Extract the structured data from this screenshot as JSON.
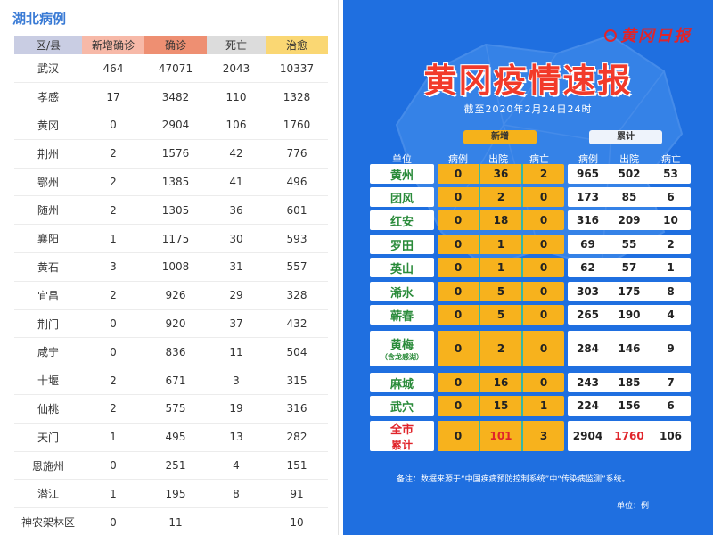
{
  "left_panel": {
    "title": "湖北病例",
    "headers": [
      "区/县",
      "新增确诊",
      "确诊",
      "死亡",
      "治愈"
    ],
    "header_colors": [
      "#c9cde3",
      "#f7b9a8",
      "#ee8f72",
      "#dcdcdc",
      "#fad773"
    ],
    "rows": [
      [
        "武汉",
        "464",
        "47071",
        "2043",
        "10337"
      ],
      [
        "孝感",
        "17",
        "3482",
        "110",
        "1328"
      ],
      [
        "黄冈",
        "0",
        "2904",
        "106",
        "1760"
      ],
      [
        "荆州",
        "2",
        "1576",
        "42",
        "776"
      ],
      [
        "鄂州",
        "2",
        "1385",
        "41",
        "496"
      ],
      [
        "随州",
        "2",
        "1305",
        "36",
        "601"
      ],
      [
        "襄阳",
        "1",
        "1175",
        "30",
        "593"
      ],
      [
        "黄石",
        "3",
        "1008",
        "31",
        "557"
      ],
      [
        "宜昌",
        "2",
        "926",
        "29",
        "328"
      ],
      [
        "荆门",
        "0",
        "920",
        "37",
        "432"
      ],
      [
        "咸宁",
        "0",
        "836",
        "11",
        "504"
      ],
      [
        "十堰",
        "2",
        "671",
        "3",
        "315"
      ],
      [
        "仙桃",
        "2",
        "575",
        "19",
        "316"
      ],
      [
        "天门",
        "1",
        "495",
        "13",
        "282"
      ],
      [
        "恩施州",
        "0",
        "251",
        "4",
        "151"
      ],
      [
        "潜江",
        "1",
        "195",
        "8",
        "91"
      ],
      [
        "神农架林区",
        "0",
        "11",
        "",
        "10"
      ]
    ]
  },
  "poster": {
    "brand": "黄冈日报",
    "headline": "黄冈疫情速报",
    "subhead": "截至2020年2月24日24时",
    "pill_new": "新增",
    "pill_total": "累计",
    "col_unit": "单位",
    "col_labels": [
      "病例",
      "出院",
      "病亡",
      "病例",
      "出院",
      "病亡"
    ],
    "rows": [
      {
        "name": "黄州",
        "sub": "",
        "new": [
          "0",
          "36",
          "2"
        ],
        "total": [
          "965",
          "502",
          "53"
        ]
      },
      {
        "name": "团风",
        "sub": "",
        "new": [
          "0",
          "2",
          "0"
        ],
        "total": [
          "173",
          "85",
          "6"
        ]
      },
      {
        "name": "红安",
        "sub": "",
        "new": [
          "0",
          "18",
          "0"
        ],
        "total": [
          "316",
          "209",
          "10"
        ]
      },
      {
        "name": "罗田",
        "sub": "",
        "new": [
          "0",
          "1",
          "0"
        ],
        "total": [
          "69",
          "55",
          "2"
        ]
      },
      {
        "name": "英山",
        "sub": "",
        "new": [
          "0",
          "1",
          "0"
        ],
        "total": [
          "62",
          "57",
          "1"
        ]
      },
      {
        "name": "浠水",
        "sub": "",
        "new": [
          "0",
          "5",
          "0"
        ],
        "total": [
          "303",
          "175",
          "8"
        ]
      },
      {
        "name": "蕲春",
        "sub": "",
        "new": [
          "0",
          "5",
          "0"
        ],
        "total": [
          "265",
          "190",
          "4"
        ]
      },
      {
        "name": "黄梅",
        "sub": "（含龙感湖）",
        "new": [
          "0",
          "2",
          "0"
        ],
        "total": [
          "284",
          "146",
          "9"
        ]
      },
      {
        "name": "麻城",
        "sub": "",
        "new": [
          "0",
          "16",
          "0"
        ],
        "total": [
          "243",
          "185",
          "7"
        ]
      },
      {
        "name": "武穴",
        "sub": "",
        "new": [
          "0",
          "15",
          "1"
        ],
        "total": [
          "224",
          "156",
          "6"
        ]
      },
      {
        "name": "全市",
        "sub": "累计",
        "new": [
          "0",
          "101",
          "3"
        ],
        "total": [
          "2904",
          "1760",
          "106"
        ],
        "highlight": true
      }
    ],
    "note": "备注：数据来源于“中国疾病预防控制系统”中“传染病监测”系统。",
    "unit": "单位：例",
    "colors": {
      "background": "#1f6fe0",
      "new_block": "#f7b21d",
      "headline": "#f23a2a",
      "region_text": "#2a8b3a",
      "highlight_red": "#e0242a"
    }
  }
}
